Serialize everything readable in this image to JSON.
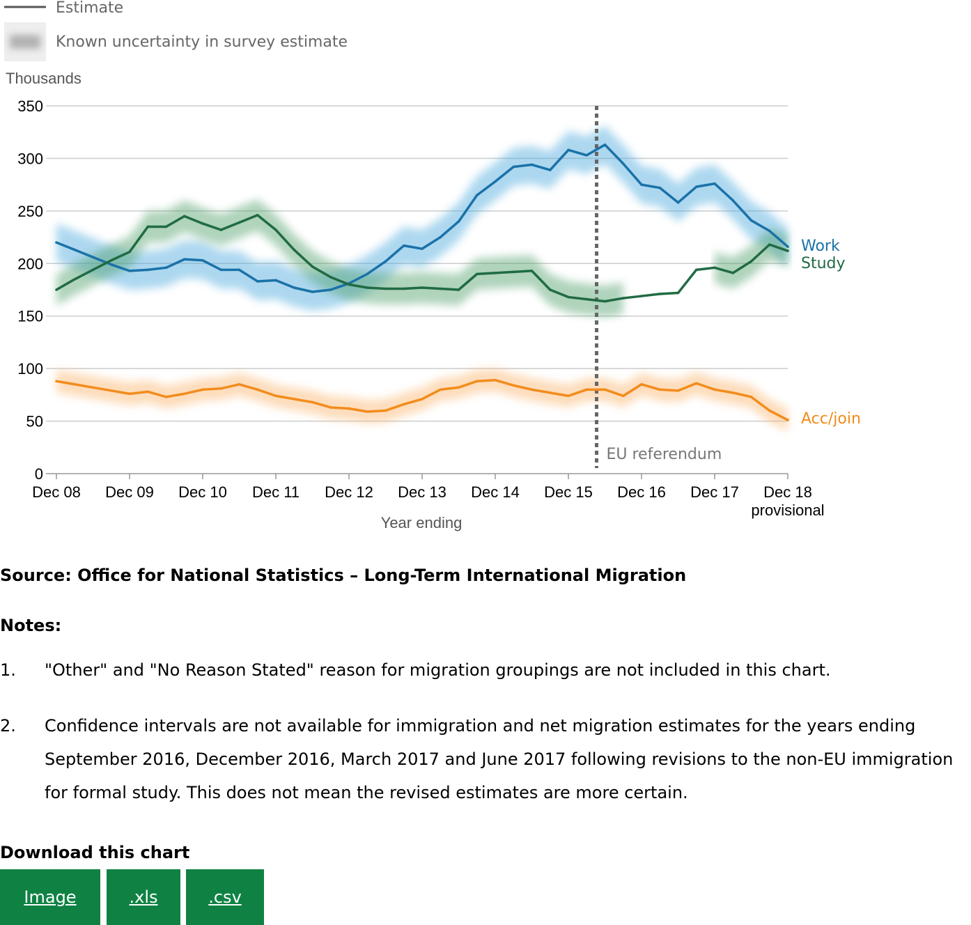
{
  "legend": {
    "estimate": "Estimate",
    "uncertainty": "Known uncertainty in survey estimate"
  },
  "chart_data": {
    "type": "line",
    "ylabel": "Thousands",
    "xlabel": "Year ending",
    "ylim": [
      0,
      350
    ],
    "y_ticks": [
      0,
      50,
      100,
      150,
      200,
      250,
      300,
      350
    ],
    "x_ticks": [
      "Dec 08",
      "Dec 09",
      "Dec 10",
      "Dec 11",
      "Dec 12",
      "Dec 13",
      "Dec 14",
      "Dec 15",
      "Dec 16",
      "Dec 17",
      "Dec 18"
    ],
    "x_tick_sublabel": "provisional",
    "grid": true,
    "reference_line": {
      "label": "EU referendum",
      "position": 7.5
    },
    "series": [
      {
        "name": "Work",
        "color": "#1a72a8",
        "band_color": "#4aa8dd",
        "band_halfwidth": 18,
        "values": [
          220,
          213,
          206,
          199,
          193,
          194,
          196,
          204,
          203,
          194,
          194,
          183,
          184,
          177,
          173,
          175,
          181,
          190,
          202,
          217,
          214,
          225,
          240,
          265,
          278,
          292,
          294,
          289,
          308,
          303,
          313,
          295,
          275,
          272,
          258,
          273,
          276,
          260,
          241,
          231,
          216
        ]
      },
      {
        "name": "Study",
        "color": "#206b43",
        "band_color": "#4f9f6a",
        "band_halfwidth": 15,
        "band_gap": [
          31,
          36
        ],
        "values": [
          175,
          185,
          194,
          203,
          211,
          235,
          235,
          245,
          238,
          232,
          239,
          246,
          232,
          213,
          197,
          187,
          180,
          177,
          176,
          176,
          177,
          176,
          175,
          190,
          191,
          192,
          193,
          175,
          168,
          166,
          164,
          167,
          169,
          171,
          172,
          194,
          196,
          191,
          202,
          218,
          212
        ]
      },
      {
        "name": "Acc/join",
        "color": "#f28c1d",
        "band_color": "#fbb36a",
        "band_halfwidth": 11,
        "values": [
          88,
          85,
          82,
          79,
          76,
          78,
          73,
          76,
          80,
          81,
          85,
          80,
          74,
          71,
          68,
          63,
          62,
          59,
          60,
          66,
          71,
          80,
          82,
          88,
          89,
          84,
          80,
          77,
          74,
          80,
          80,
          74,
          85,
          80,
          79,
          86,
          80,
          77,
          73,
          60,
          51
        ]
      }
    ]
  },
  "source": "Source: Office for National Statistics – Long-Term International Migration",
  "notes": {
    "title": "Notes:",
    "items": [
      {
        "num": "1.",
        "text": "\"Other\" and \"No Reason Stated\" reason for migration groupings are not included in this chart."
      },
      {
        "num": "2.",
        "text": "Confidence intervals are not available for immigration and net migration estimates for the years ending September 2016, December 2016, March 2017 and June 2017 following revisions to the non-EU immigration for formal study. This does not mean the revised estimates are more certain."
      }
    ]
  },
  "download": {
    "title": "Download this chart",
    "buttons": [
      "Image",
      ".xls",
      ".csv"
    ]
  }
}
